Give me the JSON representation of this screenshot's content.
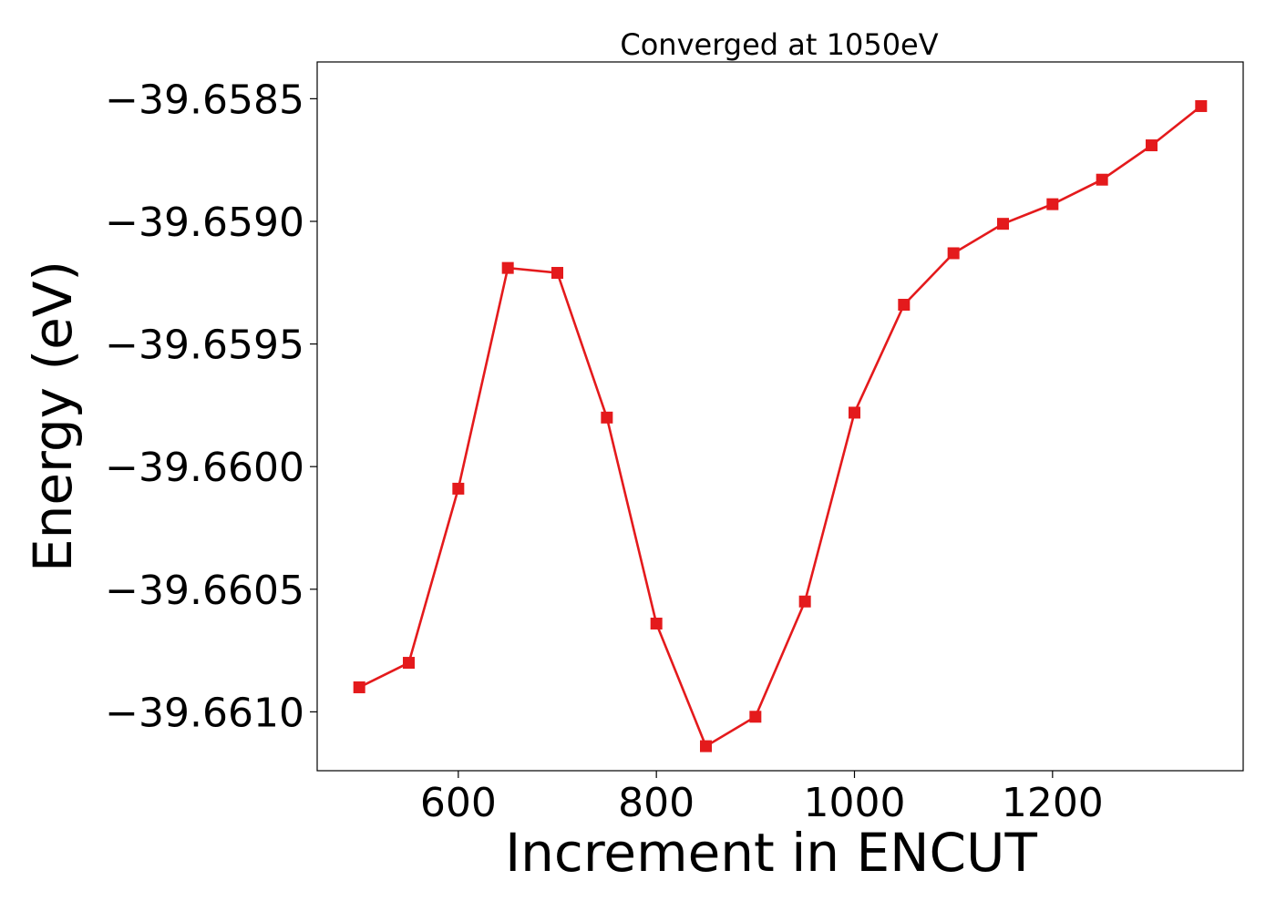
{
  "chart_data": {
    "type": "line",
    "title": "Converged at 1050eV",
    "xlabel": "Increment in ENCUT",
    "ylabel": "Energy (eV)",
    "xlim": [
      457.5,
      1392.5
    ],
    "ylim": [
      -39.66124,
      -39.65835
    ],
    "xticks": [
      600,
      800,
      1000,
      1200
    ],
    "yticks": [
      -39.6585,
      -39.659,
      -39.6595,
      -39.66,
      -39.6605,
      -39.661
    ],
    "ytick_labels": [
      "−39.6585",
      "−39.6590",
      "−39.6595",
      "−39.6600",
      "−39.6605",
      "−39.6610"
    ],
    "grid": false,
    "series": [
      {
        "color": "#e41a1c",
        "marker": "square",
        "x": [
          500,
          550,
          600,
          650,
          700,
          750,
          800,
          850,
          900,
          950,
          1000,
          1050,
          1100,
          1150,
          1200,
          1250,
          1300,
          1350
        ],
        "y": [
          -39.6609,
          -39.6608,
          -39.66009,
          -39.65919,
          -39.65921,
          -39.6598,
          -39.66064,
          -39.66114,
          -39.66102,
          -39.66055,
          -39.65978,
          -39.65934,
          -39.65913,
          -39.65901,
          -39.65893,
          -39.65883,
          -39.65869,
          -39.65853
        ]
      }
    ]
  }
}
